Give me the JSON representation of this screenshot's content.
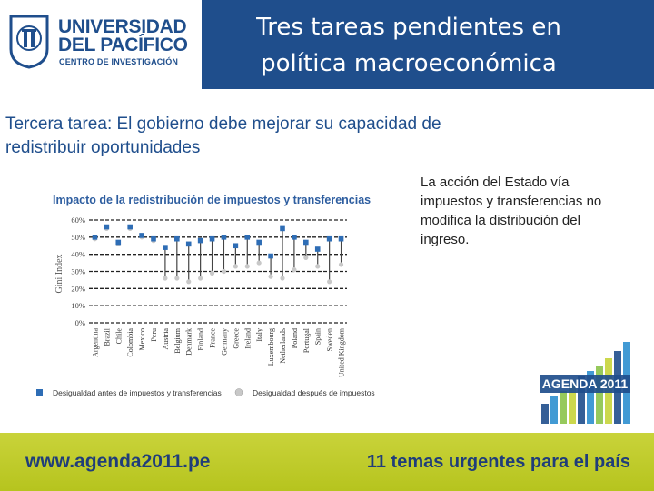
{
  "header": {
    "university_name_line1": "UNIVERSIDAD",
    "university_name_line2": "DEL PACÍFICO",
    "university_sub": "CENTRO DE INVESTIGACIÓN",
    "title_line1": "Tres tareas pendientes en",
    "title_line2": "política macroeconómica"
  },
  "subtitle_line1": "Tercera tarea: El gobierno debe mejorar su capacidad de",
  "subtitle_line2": "redistribuir oportunidades",
  "note_text": "La acción del Estado vía impuestos y transferencias no modifica la distribución del ingreso.",
  "chart_data": {
    "type": "scatter",
    "title": "Impacto de la redistribución de impuestos y transferencias",
    "ylabel": "Gini Index",
    "ylim": [
      0,
      60
    ],
    "yticks": [
      "0%",
      "10%",
      "20%",
      "30%",
      "40%",
      "50%",
      "60%"
    ],
    "categories": [
      "Argentina",
      "Brazil",
      "Chile",
      "Colombia",
      "Mexico",
      "Peru",
      "Austria",
      "Belgium",
      "Denmark",
      "Finland",
      "France",
      "Germany",
      "Greece",
      "Ireland",
      "Italy",
      "Luxembourg",
      "Netherlands",
      "Poland",
      "Portugal",
      "Spain",
      "Sweden",
      "United Kingdom"
    ],
    "series": [
      {
        "name": "Desigualdad antes de impuestos y transferencias",
        "color": "#2e6db5",
        "values": [
          50,
          56,
          47,
          56,
          51,
          49,
          44,
          49,
          46,
          48,
          49,
          50,
          45,
          50,
          47,
          39,
          55,
          50,
          47,
          43,
          49,
          49
        ]
      },
      {
        "name": "Desigualdad después de impuestos",
        "color": "#c8c8c8",
        "values": [
          49,
          55,
          46,
          55,
          50,
          48,
          26,
          26,
          24,
          26,
          29,
          30,
          33,
          33,
          35,
          27,
          26,
          31,
          38,
          33,
          24,
          34
        ]
      }
    ],
    "grid": true,
    "legend": "bottom"
  },
  "footer": {
    "website": "www.agenda2011.pe",
    "tagline": "11 temas urgentes para el país"
  },
  "agenda_logo_text": "AGENDA 2011",
  "colors": {
    "brand_blue": "#1f4e8c",
    "footer_green": "#bfcb2a"
  }
}
